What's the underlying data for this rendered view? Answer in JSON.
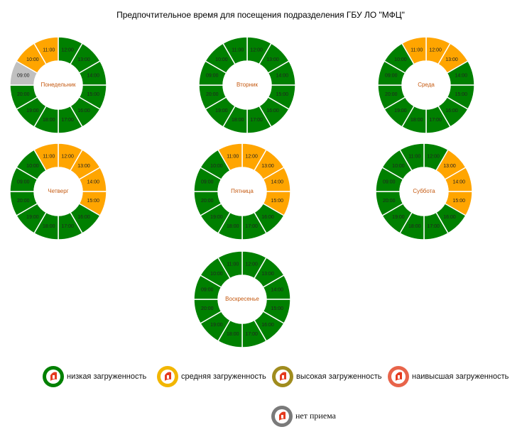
{
  "title": "Предпочтительное время для посещения подразделения ГБУ ЛО \"МФЦ\"",
  "days": [
    {
      "name": "Понедельник",
      "slots": [
        {
          "time": "12:00",
          "color": "#008000"
        },
        {
          "time": "13:00",
          "color": "#008000"
        },
        {
          "time": "14:00",
          "color": "#008000"
        },
        {
          "time": "15:00",
          "color": "#008000"
        },
        {
          "time": "16:00",
          "color": "#008000"
        },
        {
          "time": "17:00",
          "color": "#008000"
        },
        {
          "time": "18:00",
          "color": "#008000"
        },
        {
          "time": "19:00",
          "color": "#008000"
        },
        {
          "time": "20:00",
          "color": "#008000"
        },
        {
          "time": "09:00",
          "color": "#c0c0c0"
        },
        {
          "time": "10:00",
          "color": "#ffa500"
        },
        {
          "time": "11:00",
          "color": "#ffa500"
        }
      ]
    },
    {
      "name": "Вторник",
      "slots": [
        {
          "time": "12:00",
          "color": "#008000"
        },
        {
          "time": "13:00",
          "color": "#008000"
        },
        {
          "time": "14:00",
          "color": "#008000"
        },
        {
          "time": "15:00",
          "color": "#008000"
        },
        {
          "time": "16:00",
          "color": "#008000"
        },
        {
          "time": "17:00",
          "color": "#008000"
        },
        {
          "time": "18:00",
          "color": "#008000"
        },
        {
          "time": "19:00",
          "color": "#008000"
        },
        {
          "time": "20:00",
          "color": "#008000"
        },
        {
          "time": "09:00",
          "color": "#008000"
        },
        {
          "time": "10:00",
          "color": "#008000"
        },
        {
          "time": "11:00",
          "color": "#008000"
        }
      ]
    },
    {
      "name": "Среда",
      "slots": [
        {
          "time": "12:00",
          "color": "#ffa500"
        },
        {
          "time": "13:00",
          "color": "#ffa500"
        },
        {
          "time": "14:00",
          "color": "#008000"
        },
        {
          "time": "15:00",
          "color": "#008000"
        },
        {
          "time": "16:00",
          "color": "#008000"
        },
        {
          "time": "17:00",
          "color": "#008000"
        },
        {
          "time": "18:00",
          "color": "#008000"
        },
        {
          "time": "19:00",
          "color": "#008000"
        },
        {
          "time": "20:00",
          "color": "#008000"
        },
        {
          "time": "09:00",
          "color": "#008000"
        },
        {
          "time": "10:00",
          "color": "#008000"
        },
        {
          "time": "11:00",
          "color": "#ffa500"
        }
      ]
    },
    {
      "name": "Четверг",
      "slots": [
        {
          "time": "12:00",
          "color": "#ffa500"
        },
        {
          "time": "13:00",
          "color": "#ffa500"
        },
        {
          "time": "14:00",
          "color": "#ffa500"
        },
        {
          "time": "15:00",
          "color": "#ffa500"
        },
        {
          "time": "16:00",
          "color": "#008000"
        },
        {
          "time": "17:00",
          "color": "#008000"
        },
        {
          "time": "18:00",
          "color": "#008000"
        },
        {
          "time": "19:00",
          "color": "#008000"
        },
        {
          "time": "20:00",
          "color": "#008000"
        },
        {
          "time": "09:00",
          "color": "#008000"
        },
        {
          "time": "10:00",
          "color": "#008000"
        },
        {
          "time": "11:00",
          "color": "#ffa500"
        }
      ]
    },
    {
      "name": "Пятница",
      "slots": [
        {
          "time": "12:00",
          "color": "#ffa500"
        },
        {
          "time": "13:00",
          "color": "#ffa500"
        },
        {
          "time": "14:00",
          "color": "#ffa500"
        },
        {
          "time": "15:00",
          "color": "#ffa500"
        },
        {
          "time": "16:00",
          "color": "#008000"
        },
        {
          "time": "17:00",
          "color": "#008000"
        },
        {
          "time": "18:00",
          "color": "#008000"
        },
        {
          "time": "19:00",
          "color": "#008000"
        },
        {
          "time": "20:00",
          "color": "#008000"
        },
        {
          "time": "09:00",
          "color": "#008000"
        },
        {
          "time": "10:00",
          "color": "#008000"
        },
        {
          "time": "11:00",
          "color": "#ffa500"
        }
      ]
    },
    {
      "name": "Суббота",
      "slots": [
        {
          "time": "12:00",
          "color": "#008000"
        },
        {
          "time": "13:00",
          "color": "#ffa500"
        },
        {
          "time": "14:00",
          "color": "#ffa500"
        },
        {
          "time": "15:00",
          "color": "#ffa500"
        },
        {
          "time": "16:00",
          "color": "#008000"
        },
        {
          "time": "17:00",
          "color": "#008000"
        },
        {
          "time": "18:00",
          "color": "#008000"
        },
        {
          "time": "19:00",
          "color": "#008000"
        },
        {
          "time": "20:00",
          "color": "#008000"
        },
        {
          "time": "09:00",
          "color": "#008000"
        },
        {
          "time": "10:00",
          "color": "#008000"
        },
        {
          "time": "11:00",
          "color": "#008000"
        }
      ]
    },
    {
      "name": "Воскресенье",
      "slots": [
        {
          "time": "12:00",
          "color": "#008000"
        },
        {
          "time": "13:00",
          "color": "#008000"
        },
        {
          "time": "14:00",
          "color": "#008000"
        },
        {
          "time": "15:00",
          "color": "#008000"
        },
        {
          "time": "16:00",
          "color": "#008000"
        },
        {
          "time": "17:00",
          "color": "#008000"
        },
        {
          "time": "18:00",
          "color": "#008000"
        },
        {
          "time": "19:00",
          "color": "#008000"
        },
        {
          "time": "20:00",
          "color": "#008000"
        },
        {
          "time": "09:00",
          "color": "#008000"
        },
        {
          "time": "10:00",
          "color": "#008000"
        },
        {
          "time": "11:00",
          "color": "#008000"
        }
      ]
    }
  ],
  "legend": [
    {
      "label": "низкая загруженность",
      "color": "#008000"
    },
    {
      "label": "средняя загруженность",
      "color": "#f2b600"
    },
    {
      "label": "высокая загруженность",
      "color": "#a08c1e"
    },
    {
      "label": "наивысшая загруженность",
      "color": "#e8644a"
    },
    {
      "label": "нет приема",
      "color": "#7a7a7a"
    }
  ]
}
